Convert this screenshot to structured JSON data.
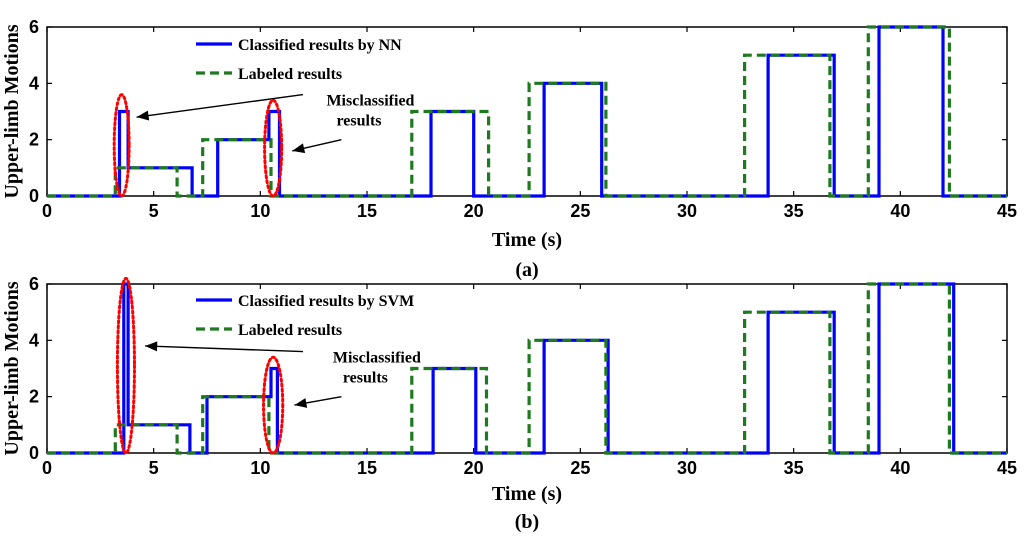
{
  "colors": {
    "classified": "#0000ff",
    "labeled": "#1f7a1f",
    "highlight": "#ff0000"
  },
  "chart_data": [
    {
      "type": "line",
      "caption": "(a)",
      "xlabel": "Time (s)",
      "ylabel": "Upper-limb Motions",
      "xlim": [
        0,
        45
      ],
      "ylim": [
        0,
        6
      ],
      "xticks": [
        0,
        5,
        10,
        15,
        20,
        25,
        30,
        35,
        40,
        45
      ],
      "yticks": [
        0,
        2,
        4,
        6
      ],
      "legend": {
        "position": "top-left-center"
      },
      "series": [
        {
          "name": "Classified results by NN",
          "style": "solid",
          "x": [
            0,
            3.4,
            3.4,
            3.8,
            3.8,
            6.8,
            6.8,
            8.0,
            8.0,
            10.4,
            10.4,
            10.9,
            10.9,
            18.0,
            18.0,
            20.0,
            20.0,
            23.3,
            23.3,
            26.0,
            26.0,
            33.8,
            33.8,
            36.9,
            36.9,
            39.0,
            39.0,
            42.0,
            42.0,
            45
          ],
          "y": [
            0,
            0,
            3,
            3,
            1,
            1,
            0,
            0,
            2,
            2,
            3,
            3,
            0,
            0,
            3,
            3,
            0,
            0,
            4,
            4,
            0,
            0,
            5,
            5,
            0,
            0,
            6,
            6,
            0,
            0
          ]
        },
        {
          "name": "Labeled results",
          "style": "dashed",
          "x": [
            0,
            3.2,
            3.2,
            6.1,
            6.1,
            7.3,
            7.3,
            10.5,
            10.5,
            17.1,
            17.1,
            20.7,
            20.7,
            22.6,
            22.6,
            26.2,
            26.2,
            32.7,
            32.7,
            36.7,
            36.7,
            38.5,
            38.5,
            42.3,
            42.3,
            45
          ],
          "y": [
            0,
            0,
            1,
            1,
            0,
            0,
            2,
            2,
            0,
            0,
            3,
            3,
            0,
            0,
            4,
            4,
            0,
            0,
            5,
            5,
            0,
            0,
            6,
            6,
            0,
            0
          ]
        }
      ],
      "annotations": {
        "text_line1": "Misclassified",
        "text_line2": "results",
        "ellipses": [
          {
            "cx": 3.5,
            "cy": 1.8,
            "rx": 0.35,
            "ry": 1.8
          },
          {
            "cx": 10.6,
            "cy": 1.7,
            "rx": 0.4,
            "ry": 1.7
          }
        ],
        "text_pos": {
          "x": 13.1,
          "y": 3.0
        },
        "arrows": [
          {
            "from": [
              12.0,
              3.6
            ],
            "to": [
              4.2,
              2.8
            ]
          },
          {
            "from": [
              13.8,
              2.0
            ],
            "to": [
              11.5,
              1.6
            ]
          }
        ]
      }
    },
    {
      "type": "line",
      "caption": "(b)",
      "xlabel": "Time (s)",
      "ylabel": "Upper-limb Motions",
      "xlim": [
        0,
        45
      ],
      "ylim": [
        0,
        6
      ],
      "xticks": [
        0,
        5,
        10,
        15,
        20,
        25,
        30,
        35,
        40,
        45
      ],
      "yticks": [
        0,
        2,
        4,
        6
      ],
      "legend": {
        "position": "top-left-center"
      },
      "series": [
        {
          "name": "Classified results by SVM",
          "style": "solid",
          "x": [
            0,
            3.6,
            3.6,
            3.8,
            3.8,
            6.7,
            6.7,
            7.5,
            7.5,
            10.5,
            10.5,
            10.8,
            10.8,
            18.1,
            18.1,
            20.1,
            20.1,
            23.3,
            23.3,
            26.3,
            26.3,
            33.8,
            33.8,
            36.9,
            36.9,
            39.0,
            39.0,
            42.5,
            42.5,
            45
          ],
          "y": [
            0,
            0,
            6,
            6,
            1,
            1,
            0,
            0,
            2,
            2,
            3,
            3,
            0,
            0,
            3,
            3,
            0,
            0,
            4,
            4,
            0,
            0,
            5,
            5,
            0,
            0,
            6,
            6,
            0,
            0
          ]
        },
        {
          "name": "Labeled results",
          "style": "dashed",
          "x": [
            0,
            3.2,
            3.2,
            6.1,
            6.1,
            7.3,
            7.3,
            10.4,
            10.4,
            17.1,
            17.1,
            20.6,
            20.6,
            22.6,
            22.6,
            26.2,
            26.2,
            32.7,
            32.7,
            36.7,
            36.7,
            38.5,
            38.5,
            42.3,
            42.3,
            45
          ],
          "y": [
            0,
            0,
            1,
            1,
            0,
            0,
            2,
            2,
            0,
            0,
            3,
            3,
            0,
            0,
            4,
            4,
            0,
            0,
            5,
            5,
            0,
            0,
            6,
            6,
            0,
            0
          ]
        }
      ],
      "annotations": {
        "text_line1": "Misclassified",
        "text_line2": "results",
        "ellipses": [
          {
            "cx": 3.7,
            "cy": 3.1,
            "rx": 0.4,
            "ry": 3.1
          },
          {
            "cx": 10.6,
            "cy": 1.7,
            "rx": 0.45,
            "ry": 1.7
          }
        ],
        "text_pos": {
          "x": 13.4,
          "y": 3.0
        },
        "arrows": [
          {
            "from": [
              12.0,
              3.6
            ],
            "to": [
              4.6,
              3.8
            ]
          },
          {
            "from": [
              13.8,
              2.0
            ],
            "to": [
              11.6,
              1.7
            ]
          }
        ]
      }
    }
  ]
}
